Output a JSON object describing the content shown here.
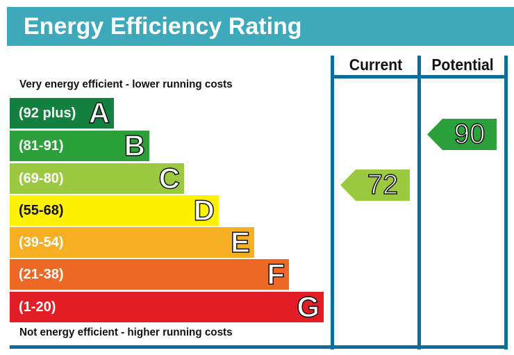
{
  "title": "Energy Efficiency Rating",
  "columns": {
    "current": "Current",
    "potential": "Potential"
  },
  "top_note": "Very energy efficient - lower running costs",
  "bottom_note": "Not energy efficient - higher running costs",
  "chart_data": {
    "type": "bar",
    "bands": [
      {
        "letter": "A",
        "range": "(92 plus)",
        "color": "#138040"
      },
      {
        "letter": "B",
        "range": "(81-91)",
        "color": "#2ca03a"
      },
      {
        "letter": "C",
        "range": "(69-80)",
        "color": "#9bc93f"
      },
      {
        "letter": "D",
        "range": "(55-68)",
        "color": "#fff200"
      },
      {
        "letter": "E",
        "range": "(39-54)",
        "color": "#f6ae22"
      },
      {
        "letter": "F",
        "range": "(21-38)",
        "color": "#ec6824"
      },
      {
        "letter": "G",
        "range": "(1-20)",
        "color": "#e31d25"
      }
    ],
    "current": {
      "value": "72",
      "band": "C",
      "color": "#9bc93f"
    },
    "potential": {
      "value": "90",
      "band": "B",
      "color": "#2ca03a"
    }
  }
}
